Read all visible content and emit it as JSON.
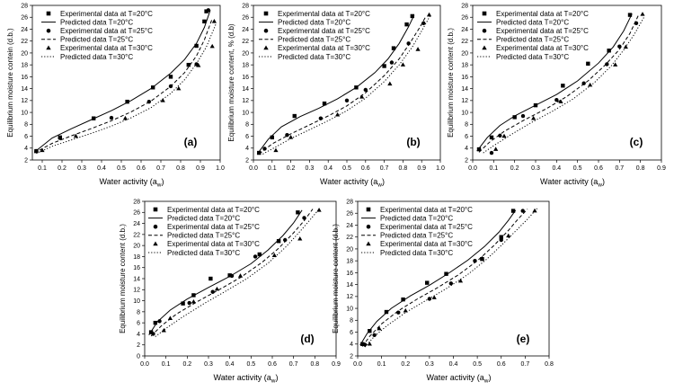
{
  "chart_data": [
    {
      "type": "scatter",
      "panel_label": "(a)",
      "xlabel": "Water activity (a",
      "xlabel_sub": "w",
      "ylabel": "Equilibrium moisture contein (d.b.)",
      "xlim": [
        0.05,
        1.0
      ],
      "ylim": [
        2,
        28
      ],
      "xticks": [
        0.1,
        0.2,
        0.3,
        0.4,
        0.5,
        0.6,
        0.7,
        0.8,
        0.9,
        1.0
      ],
      "xtick_labels": [
        "0.1",
        "0.2",
        "0.3",
        "0.4",
        "0.5",
        "0.6",
        "0.7",
        "0.8",
        "0.9",
        "1.0"
      ],
      "yticks": [
        2,
        4,
        6,
        8,
        10,
        12,
        14,
        16,
        18,
        20,
        22,
        24,
        26,
        28
      ],
      "legend_position": "top-left",
      "series": [
        {
          "name": "Experimental data at T=20°C",
          "marker": "square",
          "x": [
            0.07,
            0.19,
            0.36,
            0.53,
            0.66,
            0.75,
            0.84,
            0.88,
            0.92,
            0.93
          ],
          "y": [
            3.5,
            5.8,
            9.0,
            11.8,
            14.2,
            16.0,
            18.0,
            21.2,
            25.3,
            27.0
          ]
        },
        {
          "name": "Predicted data T=20°C",
          "line": "solid",
          "x": [
            0.06,
            0.15,
            0.25,
            0.35,
            0.45,
            0.55,
            0.65,
            0.75,
            0.82,
            0.88,
            0.92,
            0.95
          ],
          "y": [
            3.3,
            5.7,
            7.3,
            8.8,
            10.3,
            12.0,
            14.0,
            16.6,
            18.9,
            21.6,
            24.3,
            27.2
          ]
        },
        {
          "name": "Experimental data at T=25°C",
          "marker": "circle",
          "x": [
            0.07,
            0.19,
            0.45,
            0.64,
            0.75,
            0.88,
            0.94
          ],
          "y": [
            3.5,
            5.7,
            9.1,
            11.8,
            14.4,
            18.1,
            27.2
          ]
        },
        {
          "name": "Predicted data T=25°C",
          "line": "dashed",
          "x": [
            0.06,
            0.15,
            0.25,
            0.35,
            0.45,
            0.55,
            0.65,
            0.75,
            0.82,
            0.88,
            0.92,
            0.96
          ],
          "y": [
            3.2,
            4.8,
            6.1,
            7.3,
            8.6,
            10.1,
            11.9,
            14.4,
            16.7,
            19.5,
            22.2,
            25.8
          ]
        },
        {
          "name": "Experimental data at T=30°C",
          "marker": "triangle",
          "x": [
            0.1,
            0.27,
            0.52,
            0.71,
            0.79,
            0.89,
            0.96,
            0.97
          ],
          "y": [
            3.6,
            6.0,
            9.0,
            12.0,
            14.0,
            17.9,
            21.1,
            25.3
          ]
        },
        {
          "name": "Predicted data T=30°C",
          "line": "dotted",
          "x": [
            0.07,
            0.15,
            0.25,
            0.35,
            0.45,
            0.55,
            0.65,
            0.75,
            0.82,
            0.88,
            0.93,
            0.98
          ],
          "y": [
            3.1,
            4.3,
            5.4,
            6.5,
            7.7,
            9.1,
            10.8,
            13.2,
            15.5,
            18.2,
            21.0,
            25.0
          ]
        }
      ]
    },
    {
      "type": "scatter",
      "panel_label": "(b)",
      "xlabel": "Water activity (a",
      "xlabel_sub": "w",
      "ylabel": "Equilibrium moisture content, % (d.b)",
      "xlim": [
        0.0,
        1.0
      ],
      "ylim": [
        2,
        28
      ],
      "xticks": [
        0.0,
        0.1,
        0.2,
        0.3,
        0.4,
        0.5,
        0.6,
        0.7,
        0.8,
        0.9,
        1.0
      ],
      "xtick_labels": [
        "0.0",
        "0.1",
        "0.2",
        "0.3",
        "0.4",
        "0.5",
        "0.6",
        "0.7",
        "0.8",
        "0.9",
        "1.0"
      ],
      "yticks": [
        2,
        4,
        6,
        8,
        10,
        12,
        14,
        16,
        18,
        20,
        22,
        24,
        26,
        28
      ],
      "legend_position": "top-left",
      "series": [
        {
          "name": "Experimental data at T=20°C",
          "marker": "square",
          "x": [
            0.03,
            0.1,
            0.22,
            0.38,
            0.55,
            0.7,
            0.75,
            0.82,
            0.85
          ],
          "y": [
            3.2,
            5.8,
            9.4,
            11.5,
            14.2,
            17.8,
            20.8,
            24.8,
            26.2
          ]
        },
        {
          "name": "Predicted data T=20°C",
          "line": "solid",
          "x": [
            0.02,
            0.08,
            0.15,
            0.25,
            0.35,
            0.45,
            0.55,
            0.65,
            0.72,
            0.78,
            0.83,
            0.86
          ],
          "y": [
            3.0,
            5.5,
            7.6,
            9.3,
            10.7,
            12.3,
            14.2,
            16.7,
            19.0,
            21.6,
            24.4,
            26.4
          ]
        },
        {
          "name": "Experimental data at T=25°C",
          "marker": "circle",
          "x": [
            0.06,
            0.18,
            0.36,
            0.5,
            0.6,
            0.74,
            0.83,
            0.91
          ],
          "y": [
            3.9,
            6.2,
            9.0,
            12.0,
            13.8,
            18.4,
            21.6,
            25.0
          ]
        },
        {
          "name": "Predicted data T=25°C",
          "line": "dashed",
          "x": [
            0.03,
            0.1,
            0.2,
            0.3,
            0.4,
            0.5,
            0.6,
            0.7,
            0.78,
            0.84,
            0.89,
            0.92
          ],
          "y": [
            3.0,
            4.7,
            6.4,
            7.9,
            9.4,
            11.1,
            13.3,
            16.2,
            19.0,
            21.8,
            24.3,
            26.0
          ]
        },
        {
          "name": "Experimental data at T=30°C",
          "marker": "triangle",
          "x": [
            0.12,
            0.2,
            0.45,
            0.58,
            0.73,
            0.8,
            0.88,
            0.94
          ],
          "y": [
            3.6,
            5.8,
            9.6,
            12.6,
            14.8,
            18.0,
            20.6,
            26.4
          ]
        },
        {
          "name": "Predicted data T=30°C",
          "line": "dotted",
          "x": [
            0.05,
            0.12,
            0.2,
            0.3,
            0.4,
            0.5,
            0.6,
            0.7,
            0.78,
            0.85,
            0.9,
            0.95
          ],
          "y": [
            3.0,
            4.2,
            5.6,
            7.1,
            8.6,
            10.3,
            12.4,
            15.2,
            18.0,
            21.0,
            23.7,
            26.5
          ]
        }
      ]
    },
    {
      "type": "scatter",
      "panel_label": "(c)",
      "xlabel": "Water activity (a",
      "xlabel_sub": "w",
      "ylabel": "Equilibrium moisture content (d.b.)",
      "xlim": [
        0.0,
        0.9
      ],
      "ylim": [
        2,
        28
      ],
      "xticks": [
        0.0,
        0.1,
        0.2,
        0.3,
        0.4,
        0.5,
        0.6,
        0.7,
        0.8,
        0.9
      ],
      "xtick_labels": [
        "0.0",
        "0.1",
        "0.2",
        "0.3",
        "0.4",
        "0.5",
        "0.6",
        "0.7",
        "0.8",
        "0.9"
      ],
      "yticks": [
        2,
        4,
        6,
        8,
        10,
        12,
        14,
        16,
        18,
        20,
        22,
        24,
        26,
        28
      ],
      "legend_position": "top-left",
      "series": [
        {
          "name": "Experimental data at T=20°C",
          "marker": "square",
          "x": [
            0.03,
            0.09,
            0.2,
            0.3,
            0.43,
            0.55,
            0.65,
            0.75
          ],
          "y": [
            3.8,
            5.8,
            9.2,
            11.2,
            14.5,
            18.2,
            20.4,
            26.4
          ]
        },
        {
          "name": "Predicted data T=20°C",
          "line": "solid",
          "x": [
            0.02,
            0.07,
            0.13,
            0.2,
            0.3,
            0.4,
            0.5,
            0.6,
            0.67,
            0.72,
            0.76
          ],
          "y": [
            3.5,
            5.8,
            7.8,
            9.4,
            11.2,
            13.0,
            15.3,
            18.3,
            21.0,
            23.7,
            26.6
          ]
        },
        {
          "name": "Experimental data at T=25°C",
          "marker": "circle",
          "x": [
            0.09,
            0.13,
            0.24,
            0.4,
            0.53,
            0.64,
            0.7,
            0.78
          ],
          "y": [
            3.2,
            6.1,
            9.4,
            12.1,
            14.9,
            18.1,
            21.1,
            25.0
          ]
        },
        {
          "name": "Predicted data T=25°C",
          "line": "dashed",
          "x": [
            0.03,
            0.08,
            0.15,
            0.25,
            0.35,
            0.45,
            0.55,
            0.63,
            0.7,
            0.75,
            0.79
          ],
          "y": [
            3.3,
            5.0,
            6.8,
            8.8,
            10.6,
            12.7,
            15.3,
            17.9,
            20.6,
            23.3,
            26.3
          ]
        },
        {
          "name": "Experimental data at T=30°C",
          "marker": "triangle",
          "x": [
            0.11,
            0.15,
            0.29,
            0.42,
            0.56,
            0.68,
            0.73,
            0.81
          ],
          "y": [
            3.8,
            6.0,
            9.0,
            11.8,
            14.6,
            18.0,
            21.0,
            26.5
          ]
        },
        {
          "name": "Predicted data T=30°C",
          "line": "dotted",
          "x": [
            0.05,
            0.1,
            0.18,
            0.28,
            0.38,
            0.48,
            0.58,
            0.66,
            0.72,
            0.77,
            0.82
          ],
          "y": [
            3.2,
            4.4,
            6.2,
            8.3,
            10.2,
            12.3,
            15.0,
            17.8,
            20.5,
            23.1,
            26.2
          ]
        }
      ]
    },
    {
      "type": "scatter",
      "panel_label": "(d)",
      "xlabel": "Water activity (a",
      "xlabel_sub": "w",
      "ylabel": "Equilibrium moisture content (d.b.)",
      "xlim": [
        0.0,
        0.9
      ],
      "ylim": [
        0,
        28
      ],
      "xticks": [
        0.0,
        0.1,
        0.2,
        0.3,
        0.4,
        0.5,
        0.6,
        0.7,
        0.8,
        0.9
      ],
      "xtick_labels": [
        "0.0",
        "0.1",
        "0.2",
        "0.3",
        "0.4",
        "0.5",
        "0.6",
        "0.7",
        "0.8",
        "0.9"
      ],
      "yticks": [
        0,
        2,
        4,
        6,
        8,
        10,
        12,
        14,
        16,
        18,
        20,
        22,
        24,
        26,
        28
      ],
      "legend_position": "top-left",
      "series": [
        {
          "name": "Experimental data at T=20°C",
          "marker": "square",
          "x": [
            0.03,
            0.05,
            0.18,
            0.23,
            0.31,
            0.4,
            0.54,
            0.63,
            0.72
          ],
          "y": [
            4.3,
            6.0,
            9.5,
            11.0,
            14.0,
            14.6,
            18.4,
            20.8,
            26.0
          ]
        },
        {
          "name": "Predicted data T=20°C",
          "line": "solid",
          "x": [
            0.02,
            0.06,
            0.12,
            0.2,
            0.3,
            0.4,
            0.5,
            0.58,
            0.65,
            0.7,
            0.74
          ],
          "y": [
            3.8,
            6.2,
            8.3,
            10.3,
            12.4,
            14.4,
            16.7,
            19.2,
            21.8,
            24.1,
            26.4
          ]
        },
        {
          "name": "Experimental data at T=25°C",
          "marker": "circle",
          "x": [
            0.04,
            0.07,
            0.21,
            0.32,
            0.41,
            0.52,
            0.66,
            0.75
          ],
          "y": [
            4.0,
            6.3,
            9.6,
            11.6,
            14.5,
            18.0,
            21.0,
            25.0
          ]
        },
        {
          "name": "Predicted data T=25°C",
          "line": "dashed",
          "x": [
            0.03,
            0.08,
            0.15,
            0.25,
            0.35,
            0.45,
            0.55,
            0.63,
            0.7,
            0.75,
            0.79
          ],
          "y": [
            3.6,
            5.5,
            7.6,
            9.9,
            12.0,
            14.2,
            16.9,
            19.5,
            22.3,
            24.5,
            26.6
          ]
        },
        {
          "name": "Experimental data at T=30°C",
          "marker": "triangle",
          "x": [
            0.09,
            0.12,
            0.23,
            0.34,
            0.45,
            0.61,
            0.73,
            0.82
          ],
          "y": [
            4.6,
            6.8,
            9.8,
            12.1,
            14.5,
            18.2,
            21.2,
            26.4
          ]
        },
        {
          "name": "Predicted data T=30°C",
          "line": "dotted",
          "x": [
            0.05,
            0.1,
            0.18,
            0.28,
            0.38,
            0.48,
            0.58,
            0.66,
            0.72,
            0.77,
            0.82
          ],
          "y": [
            3.5,
            5.0,
            7.1,
            9.5,
            11.7,
            14.0,
            16.8,
            19.6,
            22.1,
            24.3,
            26.6
          ]
        }
      ]
    },
    {
      "type": "scatter",
      "panel_label": "(e)",
      "xlabel": "Water activity (a",
      "xlabel_sub": "w",
      "ylabel": "Equilibrium moisture content (d.b.)",
      "xlim": [
        0.0,
        0.8
      ],
      "ylim": [
        2,
        28
      ],
      "xticks": [
        0.0,
        0.1,
        0.2,
        0.3,
        0.4,
        0.5,
        0.6,
        0.7,
        0.8
      ],
      "xtick_labels": [
        "0.0",
        "0.1",
        "0.2",
        "0.3",
        "0.4",
        "0.5",
        "0.6",
        "0.7",
        "0.8"
      ],
      "yticks": [
        2,
        4,
        6,
        8,
        10,
        12,
        14,
        16,
        18,
        20,
        22,
        24,
        26,
        28
      ],
      "legend_position": "top-left",
      "series": [
        {
          "name": "Experimental data at T=20°C",
          "marker": "square",
          "x": [
            0.02,
            0.05,
            0.12,
            0.19,
            0.29,
            0.37,
            0.52,
            0.6,
            0.65
          ],
          "y": [
            4.0,
            6.2,
            9.4,
            11.5,
            14.3,
            15.8,
            18.3,
            22.0,
            26.4
          ]
        },
        {
          "name": "Predicted data T=20°C",
          "line": "solid",
          "x": [
            0.01,
            0.04,
            0.08,
            0.14,
            0.22,
            0.3,
            0.38,
            0.46,
            0.53,
            0.59,
            0.63,
            0.66
          ],
          "y": [
            3.8,
            5.8,
            7.8,
            10.0,
            12.1,
            13.9,
            15.9,
            18.1,
            20.4,
            22.8,
            24.8,
            26.5
          ]
        },
        {
          "name": "Experimental data at T=25°C",
          "marker": "circle",
          "x": [
            0.03,
            0.07,
            0.17,
            0.3,
            0.39,
            0.49,
            0.6,
            0.69
          ],
          "y": [
            3.9,
            5.5,
            9.3,
            11.6,
            14.2,
            18.0,
            21.5,
            26.4
          ]
        },
        {
          "name": "Predicted data T=25°C",
          "line": "dashed",
          "x": [
            0.02,
            0.05,
            0.1,
            0.17,
            0.25,
            0.33,
            0.42,
            0.5,
            0.57,
            0.63,
            0.67,
            0.71
          ],
          "y": [
            3.6,
            5.3,
            7.4,
            9.6,
            11.6,
            13.4,
            15.6,
            18.0,
            20.6,
            23.1,
            25.0,
            26.7
          ]
        },
        {
          "name": "Experimental data at T=30°C",
          "marker": "triangle",
          "x": [
            0.05,
            0.09,
            0.2,
            0.32,
            0.43,
            0.52,
            0.63,
            0.74
          ],
          "y": [
            4.0,
            6.6,
            9.6,
            11.8,
            14.6,
            18.4,
            22.2,
            26.4
          ]
        },
        {
          "name": "Predicted data T=30°C",
          "line": "dotted",
          "x": [
            0.03,
            0.07,
            0.12,
            0.2,
            0.28,
            0.37,
            0.46,
            0.54,
            0.6,
            0.66,
            0.71,
            0.75
          ],
          "y": [
            3.5,
            5.3,
            7.0,
            9.3,
            11.2,
            13.3,
            15.7,
            18.3,
            20.6,
            23.0,
            25.0,
            26.8
          ]
        }
      ]
    }
  ]
}
